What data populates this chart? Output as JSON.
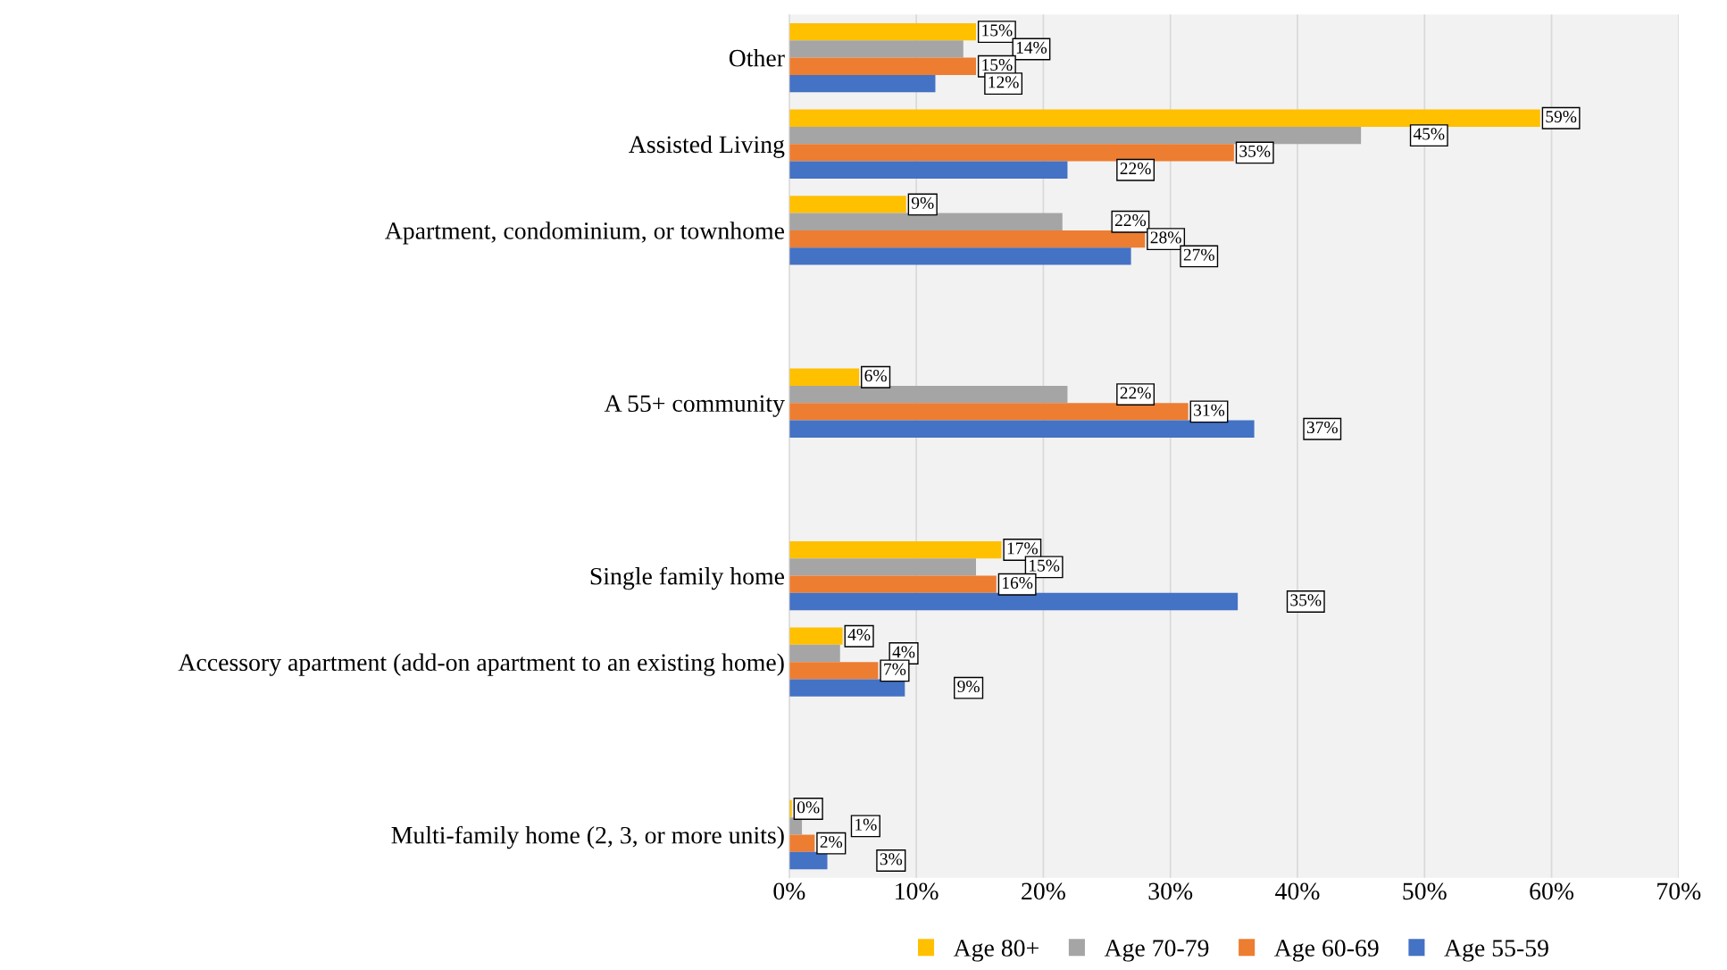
{
  "chart_data": {
    "type": "bar",
    "orientation": "horizontal",
    "categories": [
      "Other",
      "Assisted Living",
      "Apartment, condominium, or townhome",
      null,
      "A 55+ community",
      null,
      "Single family home",
      "Accessory apartment (add-on apartment to an existing home)",
      null,
      "Multi-family home (2, 3, or more units)"
    ],
    "series": [
      {
        "name": "Age 80+",
        "color": "#ffc000",
        "values": [
          14.7,
          59.1,
          9.2,
          null,
          5.5,
          null,
          16.7,
          4.2,
          null,
          0.2
        ],
        "value_labels": [
          "15%",
          "59%",
          "9%",
          null,
          "6%",
          null,
          "17%",
          "4%",
          null,
          "0%"
        ]
      },
      {
        "name": "Age 70-79",
        "color": "#a5a5a5",
        "values": [
          13.7,
          45.0,
          21.5,
          null,
          21.9,
          null,
          14.7,
          4.0,
          null,
          1.0
        ],
        "value_labels": [
          "14%",
          "45%",
          "22%",
          null,
          "22%",
          null,
          "15%",
          "4%",
          null,
          "1%"
        ]
      },
      {
        "name": "Age 60-69",
        "color": "#ed7d31",
        "values": [
          14.7,
          35.0,
          28.0,
          null,
          31.4,
          null,
          16.3,
          7.0,
          null,
          2.0
        ],
        "value_labels": [
          "15%",
          "35%",
          "28%",
          null,
          "31%",
          null,
          "16%",
          "7%",
          null,
          "2%"
        ]
      },
      {
        "name": "Age 55-59",
        "color": "#4472c4",
        "values": [
          11.5,
          21.9,
          26.9,
          null,
          36.6,
          null,
          35.3,
          9.1,
          null,
          3.0
        ],
        "value_labels": [
          "12%",
          "22%",
          "27%",
          null,
          "37%",
          null,
          "35%",
          "9%",
          null,
          "3%"
        ]
      }
    ],
    "xlim": [
      0,
      70
    ],
    "xticks": [
      {
        "value": 0,
        "label": "0%"
      },
      {
        "value": 10,
        "label": "10%"
      },
      {
        "value": 20,
        "label": "20%"
      },
      {
        "value": 30,
        "label": "30%"
      },
      {
        "value": 40,
        "label": "40%"
      },
      {
        "value": 50,
        "label": "50%"
      },
      {
        "value": 60,
        "label": "60%"
      },
      {
        "value": 70,
        "label": "70%"
      }
    ],
    "grid": "x",
    "legend": "bottom"
  }
}
